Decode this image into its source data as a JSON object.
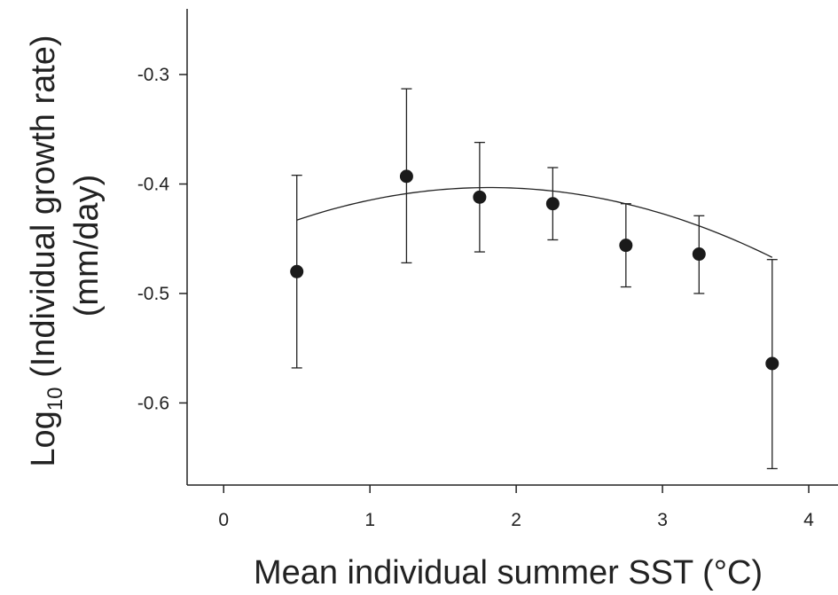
{
  "chart_data": {
    "type": "scatter",
    "title": "",
    "xlabel": "Mean individual summer SST (°C)",
    "ylabel": {
      "prefix": "Log",
      "subscript": "10",
      "suffix": " (Individual growth rate)",
      "line2": "(mm/day)"
    },
    "xlim": [
      -0.25,
      4.2
    ],
    "ylim": [
      -0.675,
      -0.24
    ],
    "xticks": [
      0,
      1,
      2,
      3,
      4
    ],
    "xtick_labels": [
      "0",
      "1",
      "2",
      "3",
      "4"
    ],
    "yticks": [
      -0.3,
      -0.4,
      -0.5,
      -0.6
    ],
    "ytick_labels": [
      "-0.3",
      "-0.4",
      "-0.5",
      "-0.6"
    ],
    "grid": false,
    "points": [
      {
        "x": 0.5,
        "y": -0.48,
        "err_low": -0.568,
        "err_high": -0.392
      },
      {
        "x": 1.25,
        "y": -0.393,
        "err_low": -0.472,
        "err_high": -0.313
      },
      {
        "x": 1.75,
        "y": -0.412,
        "err_low": -0.462,
        "err_high": -0.362
      },
      {
        "x": 2.25,
        "y": -0.418,
        "err_low": -0.451,
        "err_high": -0.385
      },
      {
        "x": 2.75,
        "y": -0.456,
        "err_low": -0.494,
        "err_high": -0.418
      },
      {
        "x": 3.25,
        "y": -0.464,
        "err_low": -0.5,
        "err_high": -0.429
      },
      {
        "x": 3.75,
        "y": -0.564,
        "err_low": -0.66,
        "err_high": -0.469
      }
    ],
    "fit": {
      "type": "quadratic",
      "x_range": [
        0.5,
        3.75
      ],
      "coefficients": [
        -0.4598,
        0.0622,
        -0.0171
      ]
    }
  }
}
